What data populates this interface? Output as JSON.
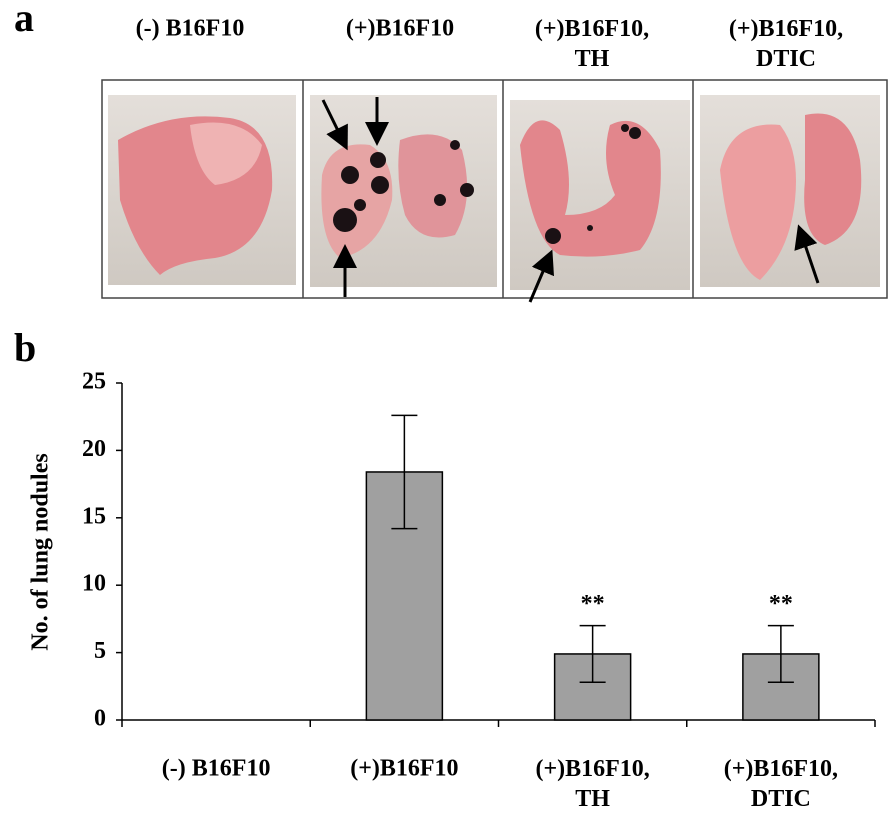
{
  "panel_a": {
    "label": "a",
    "columns": [
      {
        "label": "(-) B16F10"
      },
      {
        "label": "(+)B16F10"
      },
      {
        "label": "(+)B16F10,\nTH"
      },
      {
        "label": "(+)B16F10,\nDTIC"
      }
    ]
  },
  "chart_data": {
    "type": "bar",
    "panel_label": "b",
    "ylabel": "No. of lung nodules",
    "categories": [
      "(-)  B16F10",
      "(+)B16F10",
      "(+)B16F10,\nTH",
      "(+)B16F10,\nDTIC"
    ],
    "values": [
      0,
      18.4,
      4.9,
      4.9
    ],
    "errors": [
      0,
      4.2,
      2.1,
      2.1
    ],
    "significance": [
      null,
      null,
      "**",
      "**"
    ],
    "color": "#a0a0a0",
    "ylim": [
      0,
      25
    ],
    "yticks": [
      0,
      5,
      10,
      15,
      20,
      25
    ],
    "grid": false
  }
}
